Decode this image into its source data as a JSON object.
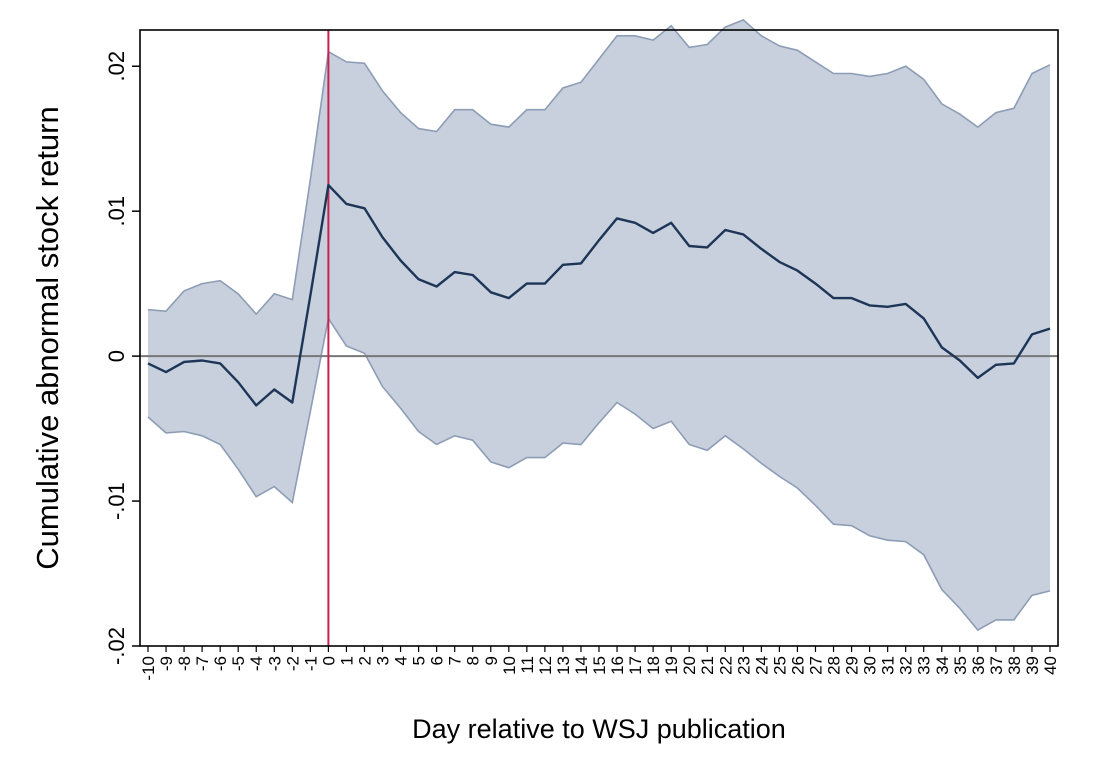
{
  "chart_data": {
    "type": "line",
    "title": "",
    "xlabel": "Day relative to WSJ publication",
    "ylabel": "Cumulative abnormal stock return",
    "x": [
      -10,
      -9,
      -8,
      -7,
      -6,
      -5,
      -4,
      -3,
      -2,
      -1,
      0,
      1,
      2,
      3,
      4,
      5,
      6,
      7,
      8,
      9,
      10,
      11,
      12,
      13,
      14,
      15,
      16,
      17,
      18,
      19,
      20,
      21,
      22,
      23,
      24,
      25,
      26,
      27,
      28,
      29,
      30,
      31,
      32,
      33,
      34,
      35,
      36,
      37,
      38,
      39,
      40
    ],
    "x_tick_labels": [
      "-10",
      "-9",
      "-8",
      "-7",
      "-6",
      "-5",
      "-4",
      "-3",
      "-2",
      "-1",
      "0",
      "1",
      "2",
      "3",
      "4",
      "5",
      "6",
      "7",
      "8",
      "9",
      "10",
      "11",
      "12",
      "13",
      "14",
      "15",
      "16",
      "17",
      "18",
      "19",
      "20",
      "21",
      "22",
      "23",
      "24",
      "25",
      "26",
      "27",
      "28",
      "29",
      "30",
      "31",
      "32",
      "33",
      "34",
      "35",
      "36",
      "37",
      "38",
      "39",
      "40"
    ],
    "xlim": [
      -10,
      40
    ],
    "ylim": [
      -0.02,
      0.0225
    ],
    "y_ticks": [
      -0.02,
      -0.01,
      0,
      0.01,
      0.02
    ],
    "y_tick_labels": [
      "-.02",
      "-.01",
      "0",
      ".01",
      ".02"
    ],
    "series": [
      {
        "name": "Cumulative abnormal return",
        "values": [
          -0.0005,
          -0.0011,
          -0.0004,
          -0.0003,
          -0.0005,
          -0.0018,
          -0.0034,
          -0.0023,
          -0.0032,
          0.0042,
          0.0118,
          0.0105,
          0.0102,
          0.0082,
          0.0066,
          0.0053,
          0.0048,
          0.0058,
          0.0056,
          0.0044,
          0.004,
          0.005,
          0.005,
          0.0063,
          0.0064,
          0.008,
          0.0095,
          0.0092,
          0.0085,
          0.0092,
          0.0076,
          0.0075,
          0.0087,
          0.0084,
          0.0074,
          0.0065,
          0.0059,
          0.005,
          0.004,
          0.004,
          0.0035,
          0.0034,
          0.0036,
          0.0026,
          0.0006,
          -0.0003,
          -0.0015,
          -0.0006,
          -0.0005,
          0.0015,
          0.0019
        ]
      },
      {
        "name": "Upper confidence bound",
        "values": [
          0.0032,
          0.0031,
          0.0045,
          0.005,
          0.0052,
          0.0043,
          0.0029,
          0.0043,
          0.0039,
          0.0122,
          0.021,
          0.0203,
          0.0202,
          0.0183,
          0.0168,
          0.0157,
          0.0155,
          0.017,
          0.017,
          0.016,
          0.0158,
          0.017,
          0.017,
          0.0185,
          0.0189,
          0.0205,
          0.0221,
          0.0221,
          0.0218,
          0.0228,
          0.0213,
          0.0215,
          0.0227,
          0.0232,
          0.0221,
          0.0214,
          0.0211,
          0.0203,
          0.0195,
          0.0195,
          0.0193,
          0.0195,
          0.02,
          0.0191,
          0.0174,
          0.0167,
          0.0158,
          0.0168,
          0.0171,
          0.0195,
          0.0201
        ]
      },
      {
        "name": "Lower confidence bound",
        "values": [
          -0.0042,
          -0.0053,
          -0.0052,
          -0.0055,
          -0.0061,
          -0.0078,
          -0.0097,
          -0.009,
          -0.0101,
          -0.0038,
          0.0026,
          0.0007,
          0.0002,
          -0.0021,
          -0.0036,
          -0.0052,
          -0.0061,
          -0.0055,
          -0.0058,
          -0.0073,
          -0.0077,
          -0.007,
          -0.007,
          -0.006,
          -0.0061,
          -0.0046,
          -0.0032,
          -0.004,
          -0.005,
          -0.0045,
          -0.0061,
          -0.0065,
          -0.0055,
          -0.0064,
          -0.0074,
          -0.0083,
          -0.0091,
          -0.0103,
          -0.0116,
          -0.0117,
          -0.0124,
          -0.0127,
          -0.0128,
          -0.0137,
          -0.0161,
          -0.0174,
          -0.0189,
          -0.0182,
          -0.0182,
          -0.0165,
          -0.0162
        ]
      }
    ],
    "reference_lines": [
      {
        "axis": "y",
        "value": 0,
        "color": "#777777"
      },
      {
        "axis": "x",
        "value": 0,
        "color": "#c8214f"
      }
    ],
    "legend": "none",
    "grid": false
  },
  "colors": {
    "line": "#1d3557",
    "band_fill": "#c7d0dc",
    "band_edge": "#8d9db5",
    "zero_line": "#777777",
    "event_line": "#c8214f",
    "frame": "#000000"
  }
}
